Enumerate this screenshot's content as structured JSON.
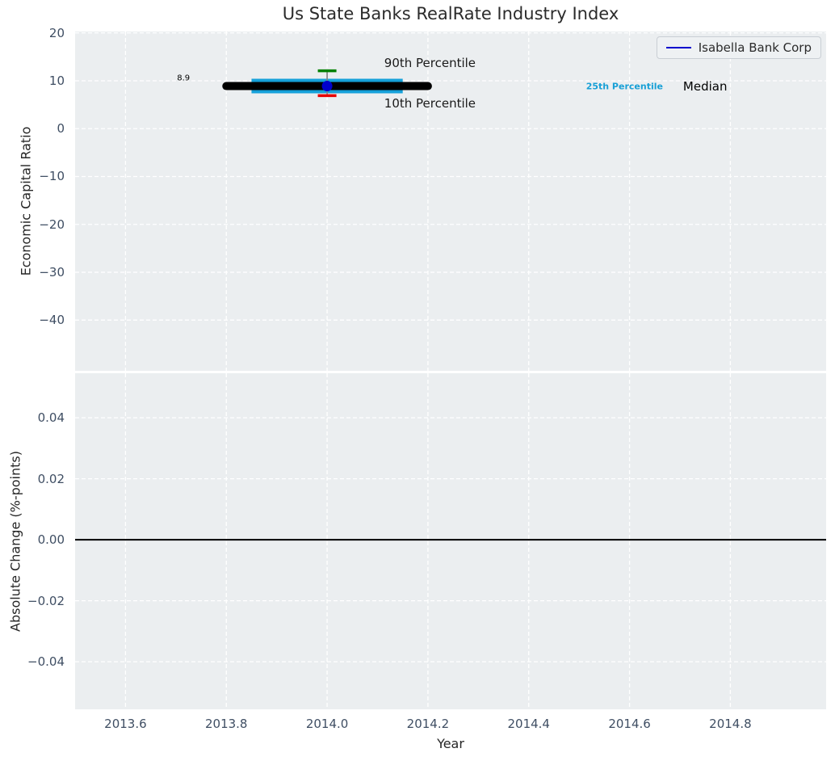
{
  "title": "Us State Banks RealRate Industry Index",
  "legend": {
    "label": "Isabella Bank Corp",
    "line_color": "#0000cd"
  },
  "colors": {
    "figure_bg": "#ffffff",
    "axes_bg": "#ebeef0",
    "grid": "#ffffff",
    "tick_label": "#3f4e63",
    "axis_label": "#262626",
    "title": "#2b2b2b",
    "median_line": "#000000",
    "iqr_band": "#16a1da",
    "p90_cap": "#008000",
    "p10_cap": "#e80000",
    "errorbar_line": "#808080",
    "company_marker": "#0000cd",
    "zero_line": "#000000"
  },
  "chart_data": [
    {
      "type": "line",
      "title": "Us State Banks RealRate Industry Index",
      "ylabel": "Economic Capital Ratio",
      "xlabel": "",
      "xlim": [
        2013.5,
        2014.99
      ],
      "ylim": [
        -50.6,
        20.3
      ],
      "grid": true,
      "legend_position": "upper right",
      "x_tick_values": [
        2013.6,
        2013.8,
        2014.0,
        2014.2,
        2014.4,
        2014.6,
        2014.8
      ],
      "x_tick_labels": [],
      "y_tick_values": [
        20,
        10,
        0,
        -10,
        -20,
        -30,
        -40
      ],
      "y_tick_labels": [
        "20",
        "10",
        "0",
        "−10",
        "−20",
        "−30",
        "−40"
      ],
      "point_summary": {
        "year": 2014.0,
        "company_value": 8.9,
        "median": 8.9,
        "p10": 6.9,
        "p90": 12.1,
        "median_line_span": [
          2013.8,
          2014.2
        ],
        "p25_p75_span": [
          2013.85,
          2014.15
        ]
      },
      "series": [
        {
          "name": "25th-75th percentile range",
          "type": "thick_line",
          "color_key": "iqr_band",
          "x": [
            2013.85,
            2014.15
          ],
          "y": 8.9,
          "linewidth": 18,
          "cap": "butt"
        },
        {
          "name": "Industry median",
          "type": "thick_line",
          "color_key": "median_line",
          "x": [
            2013.8,
            2014.2
          ],
          "y": 8.9,
          "linewidth": 10,
          "cap": "round"
        },
        {
          "name": "10th-90th percentile errorbar",
          "type": "errorbar",
          "x": 2014.0,
          "y_low": 6.9,
          "y_high": 12.1,
          "cap_width": 23
        },
        {
          "name": "Isabella Bank Corp",
          "type": "point",
          "x": 2014.0,
          "y": 8.9,
          "radius": 6.5
        }
      ],
      "annotations": [
        {
          "text": "8.9",
          "x": 2013.715,
          "y": 10.5,
          "size": 10,
          "weight": "normal",
          "color": "#000000"
        },
        {
          "text": "90th Percentile",
          "x": 2014.204,
          "y": 13.7,
          "size": 15,
          "weight": "normal",
          "color": "#1a1a1a"
        },
        {
          "text": "10th Percentile",
          "x": 2014.204,
          "y": 5.3,
          "size": 15,
          "weight": "normal",
          "color": "#1a1a1a"
        },
        {
          "text": "25th Percentile",
          "x": 2014.59,
          "y": 8.9,
          "size": 11,
          "weight": "bold",
          "color": "#18a0d6"
        },
        {
          "text": "Median",
          "x": 2014.75,
          "y": 8.9,
          "size": 15,
          "weight": "normal",
          "color": "#000000"
        }
      ]
    },
    {
      "type": "line",
      "title": "",
      "ylabel": "Absolute Change (%-points)",
      "xlabel": "Year",
      "xlim": [
        2013.5,
        2014.99
      ],
      "ylim": [
        -0.0556,
        0.0546
      ],
      "grid": true,
      "x_tick_values": [
        2013.6,
        2013.8,
        2014.0,
        2014.2,
        2014.4,
        2014.6,
        2014.8
      ],
      "x_tick_labels": [
        "2013.6",
        "2013.8",
        "2014.0",
        "2014.2",
        "2014.4",
        "2014.6",
        "2014.8"
      ],
      "y_tick_values": [
        0.04,
        0.02,
        0.0,
        -0.02,
        -0.04
      ],
      "y_tick_labels": [
        "0.04",
        "0.02",
        "0.00",
        "−0.02",
        "−0.04"
      ],
      "series": [
        {
          "name": "Zero reference line",
          "type": "hline",
          "y": 0.0,
          "linewidth": 2,
          "color_key": "zero_line"
        }
      ],
      "annotations": []
    }
  ]
}
